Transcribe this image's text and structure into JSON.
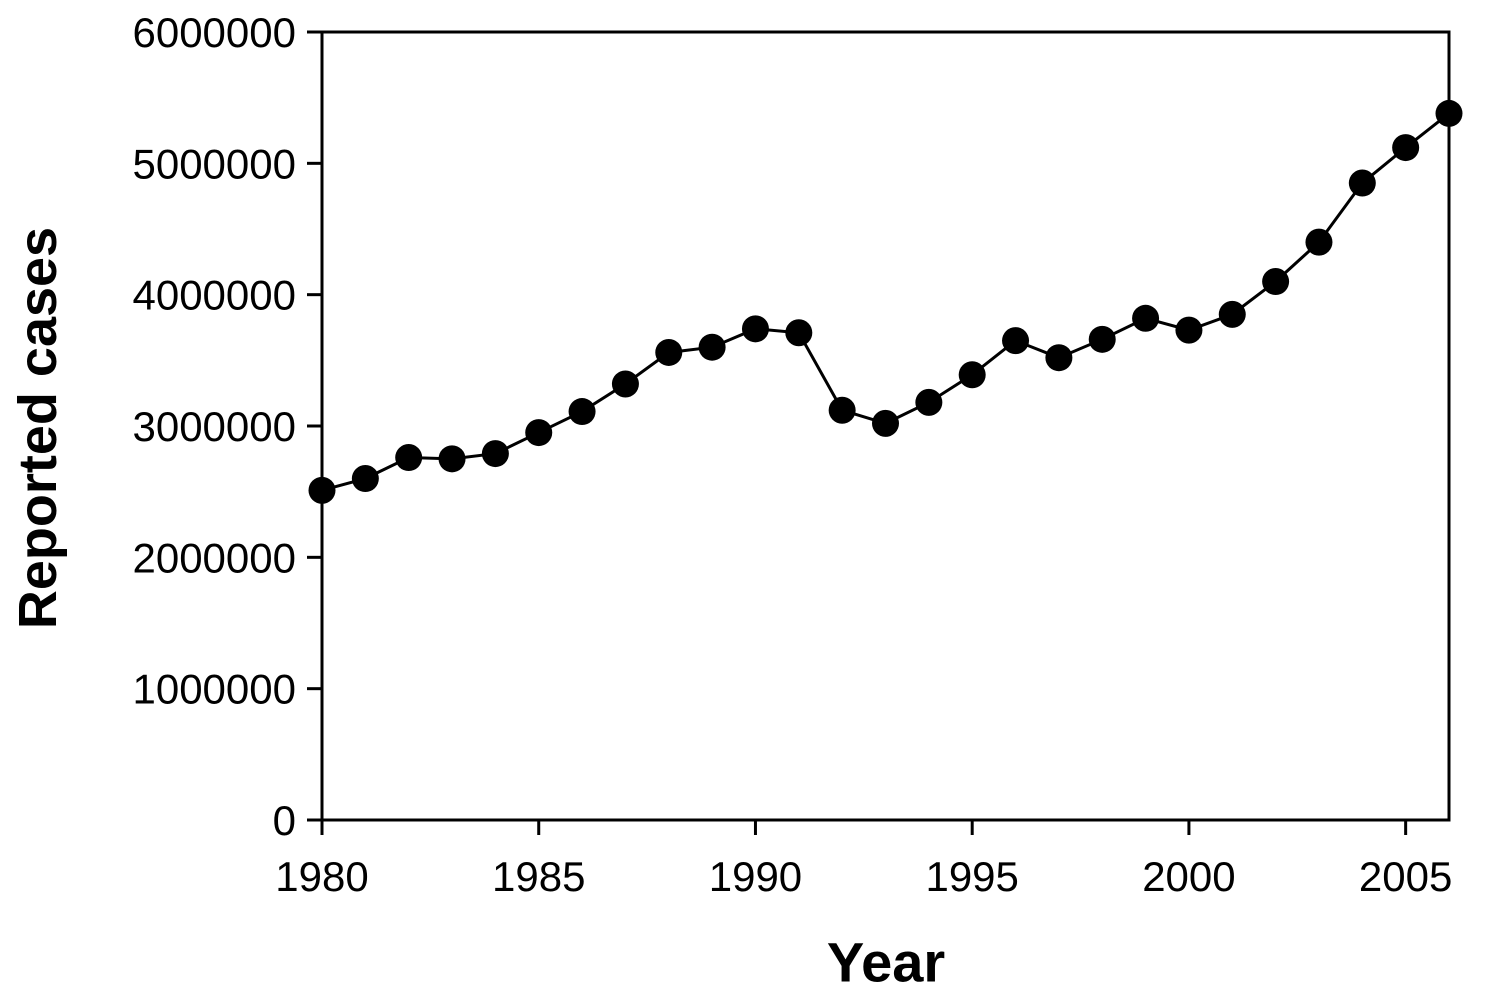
{
  "chart_data": {
    "type": "line",
    "title": "",
    "xlabel": "Year",
    "ylabel": "Reported cases",
    "x": [
      1980,
      1981,
      1982,
      1983,
      1984,
      1985,
      1986,
      1987,
      1988,
      1989,
      1990,
      1991,
      1992,
      1993,
      1994,
      1995,
      1996,
      1997,
      1998,
      1999,
      2000,
      2001,
      2002,
      2003,
      2004,
      2005,
      2006
    ],
    "values": [
      2510000,
      2600000,
      2760000,
      2750000,
      2790000,
      2950000,
      3110000,
      3320000,
      3560000,
      3600000,
      3740000,
      3710000,
      3120000,
      3020000,
      3180000,
      3390000,
      3650000,
      3520000,
      3660000,
      3820000,
      3730000,
      3850000,
      4100000,
      4400000,
      4850000,
      5120000,
      5380000
    ],
    "xlim": [
      1980,
      2006
    ],
    "ylim": [
      0,
      6000000
    ],
    "xticks": [
      1980,
      1985,
      1990,
      1995,
      2000,
      2005
    ],
    "xtick_labels": [
      "1980",
      "1985",
      "1990",
      "1995",
      "2000",
      "2005"
    ],
    "yticks": [
      0,
      1000000,
      2000000,
      3000000,
      4000000,
      5000000,
      6000000
    ],
    "ytick_labels": [
      "0",
      "1000000",
      "2000000",
      "3000000",
      "4000000",
      "5000000",
      "6000000"
    ],
    "grid": false,
    "legend": "none",
    "marker": "filled-circle",
    "line_color": "#000000",
    "marker_color": "#000000",
    "axis_color": "#000000",
    "background_color": "#ffffff"
  }
}
